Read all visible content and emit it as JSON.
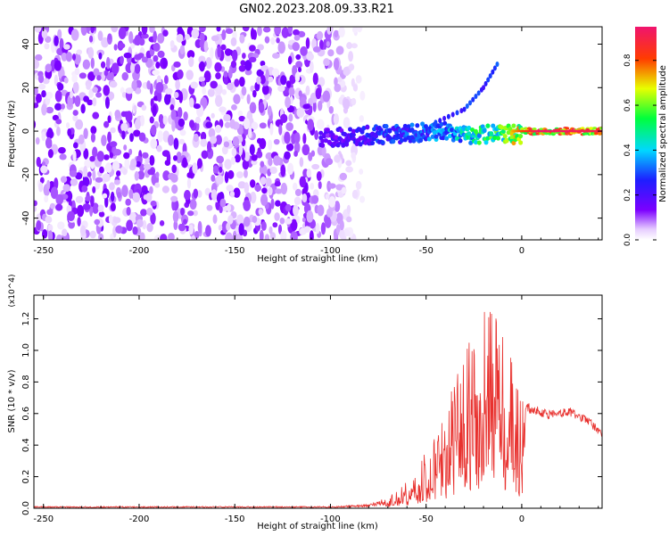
{
  "title": "GN02.2023.208.09.33.R21",
  "chart_data": [
    {
      "type": "heatmap",
      "xlabel": "Height of straight line (km)",
      "ylabel": "Frequency (Hz)",
      "xlim": [
        -255,
        42
      ],
      "ylim": [
        -50,
        48
      ],
      "xticks": [
        -250,
        -200,
        -150,
        -100,
        -50,
        0
      ],
      "yticks": [
        -40,
        -20,
        0,
        20,
        40
      ],
      "colorbar": {
        "label": "Normalized spectral amplitude",
        "range": [
          0.0,
          0.95
        ],
        "ticks": [
          0.0,
          0.2,
          0.4,
          0.6,
          0.8
        ],
        "colormap": "rainbow (purple-blue-cyan-green-yellow-red)"
      },
      "features": {
        "noise_region_x": [
          -255,
          -85
        ],
        "noise_amplitude_range": [
          0.0,
          0.15
        ],
        "signal_band_x": [
          -105,
          42
        ],
        "signal_frequency_hz": 0,
        "signal_amplitude_by_height": [
          {
            "x": -100,
            "amp": 0.2
          },
          {
            "x": -75,
            "amp": 0.3
          },
          {
            "x": -50,
            "amp": 0.35
          },
          {
            "x": -30,
            "amp": 0.5
          },
          {
            "x": -10,
            "amp": 0.65
          },
          {
            "x": 10,
            "amp": 0.95
          },
          {
            "x": 40,
            "amp": 0.9
          }
        ],
        "secondary_trace": [
          {
            "x": -45,
            "y": 4
          },
          {
            "x": -30,
            "y": 10
          },
          {
            "x": -20,
            "y": 20
          },
          {
            "x": -12,
            "y": 32
          }
        ]
      }
    },
    {
      "type": "line",
      "xlabel": "Height of straight line (km)",
      "ylabel": "SNR (10 * v/v)",
      "y_multiplier": "(x10^4)",
      "xlim": [
        -255,
        42
      ],
      "ylim": [
        0,
        1.35
      ],
      "xticks": [
        -250,
        -200,
        -150,
        -100,
        -50,
        0
      ],
      "yticks": [
        0.0,
        0.2,
        0.4,
        0.6,
        0.8,
        1.0,
        1.2
      ],
      "color": "#e8312e",
      "series": [
        {
          "envelope_points": [
            {
              "x": -255,
              "y": 0.01
            },
            {
              "x": -100,
              "y": 0.01
            },
            {
              "x": -80,
              "y": 0.02
            },
            {
              "x": -70,
              "y": 0.06
            },
            {
              "x": -62,
              "y": 0.15
            },
            {
              "x": -55,
              "y": 0.25
            },
            {
              "x": -50,
              "y": 0.35
            },
            {
              "x": -45,
              "y": 0.45
            },
            {
              "x": -40,
              "y": 0.6
            },
            {
              "x": -35,
              "y": 0.8
            },
            {
              "x": -30,
              "y": 1.0
            },
            {
              "x": -25,
              "y": 1.15
            },
            {
              "x": -20,
              "y": 1.25
            },
            {
              "x": -15,
              "y": 1.2
            },
            {
              "x": -10,
              "y": 1.1
            },
            {
              "x": -5,
              "y": 0.9
            },
            {
              "x": 0,
              "y": 0.68
            },
            {
              "x": 5,
              "y": 0.63
            },
            {
              "x": 15,
              "y": 0.6
            },
            {
              "x": 25,
              "y": 0.62
            },
            {
              "x": 35,
              "y": 0.56
            },
            {
              "x": 42,
              "y": 0.47
            }
          ]
        }
      ]
    }
  ]
}
